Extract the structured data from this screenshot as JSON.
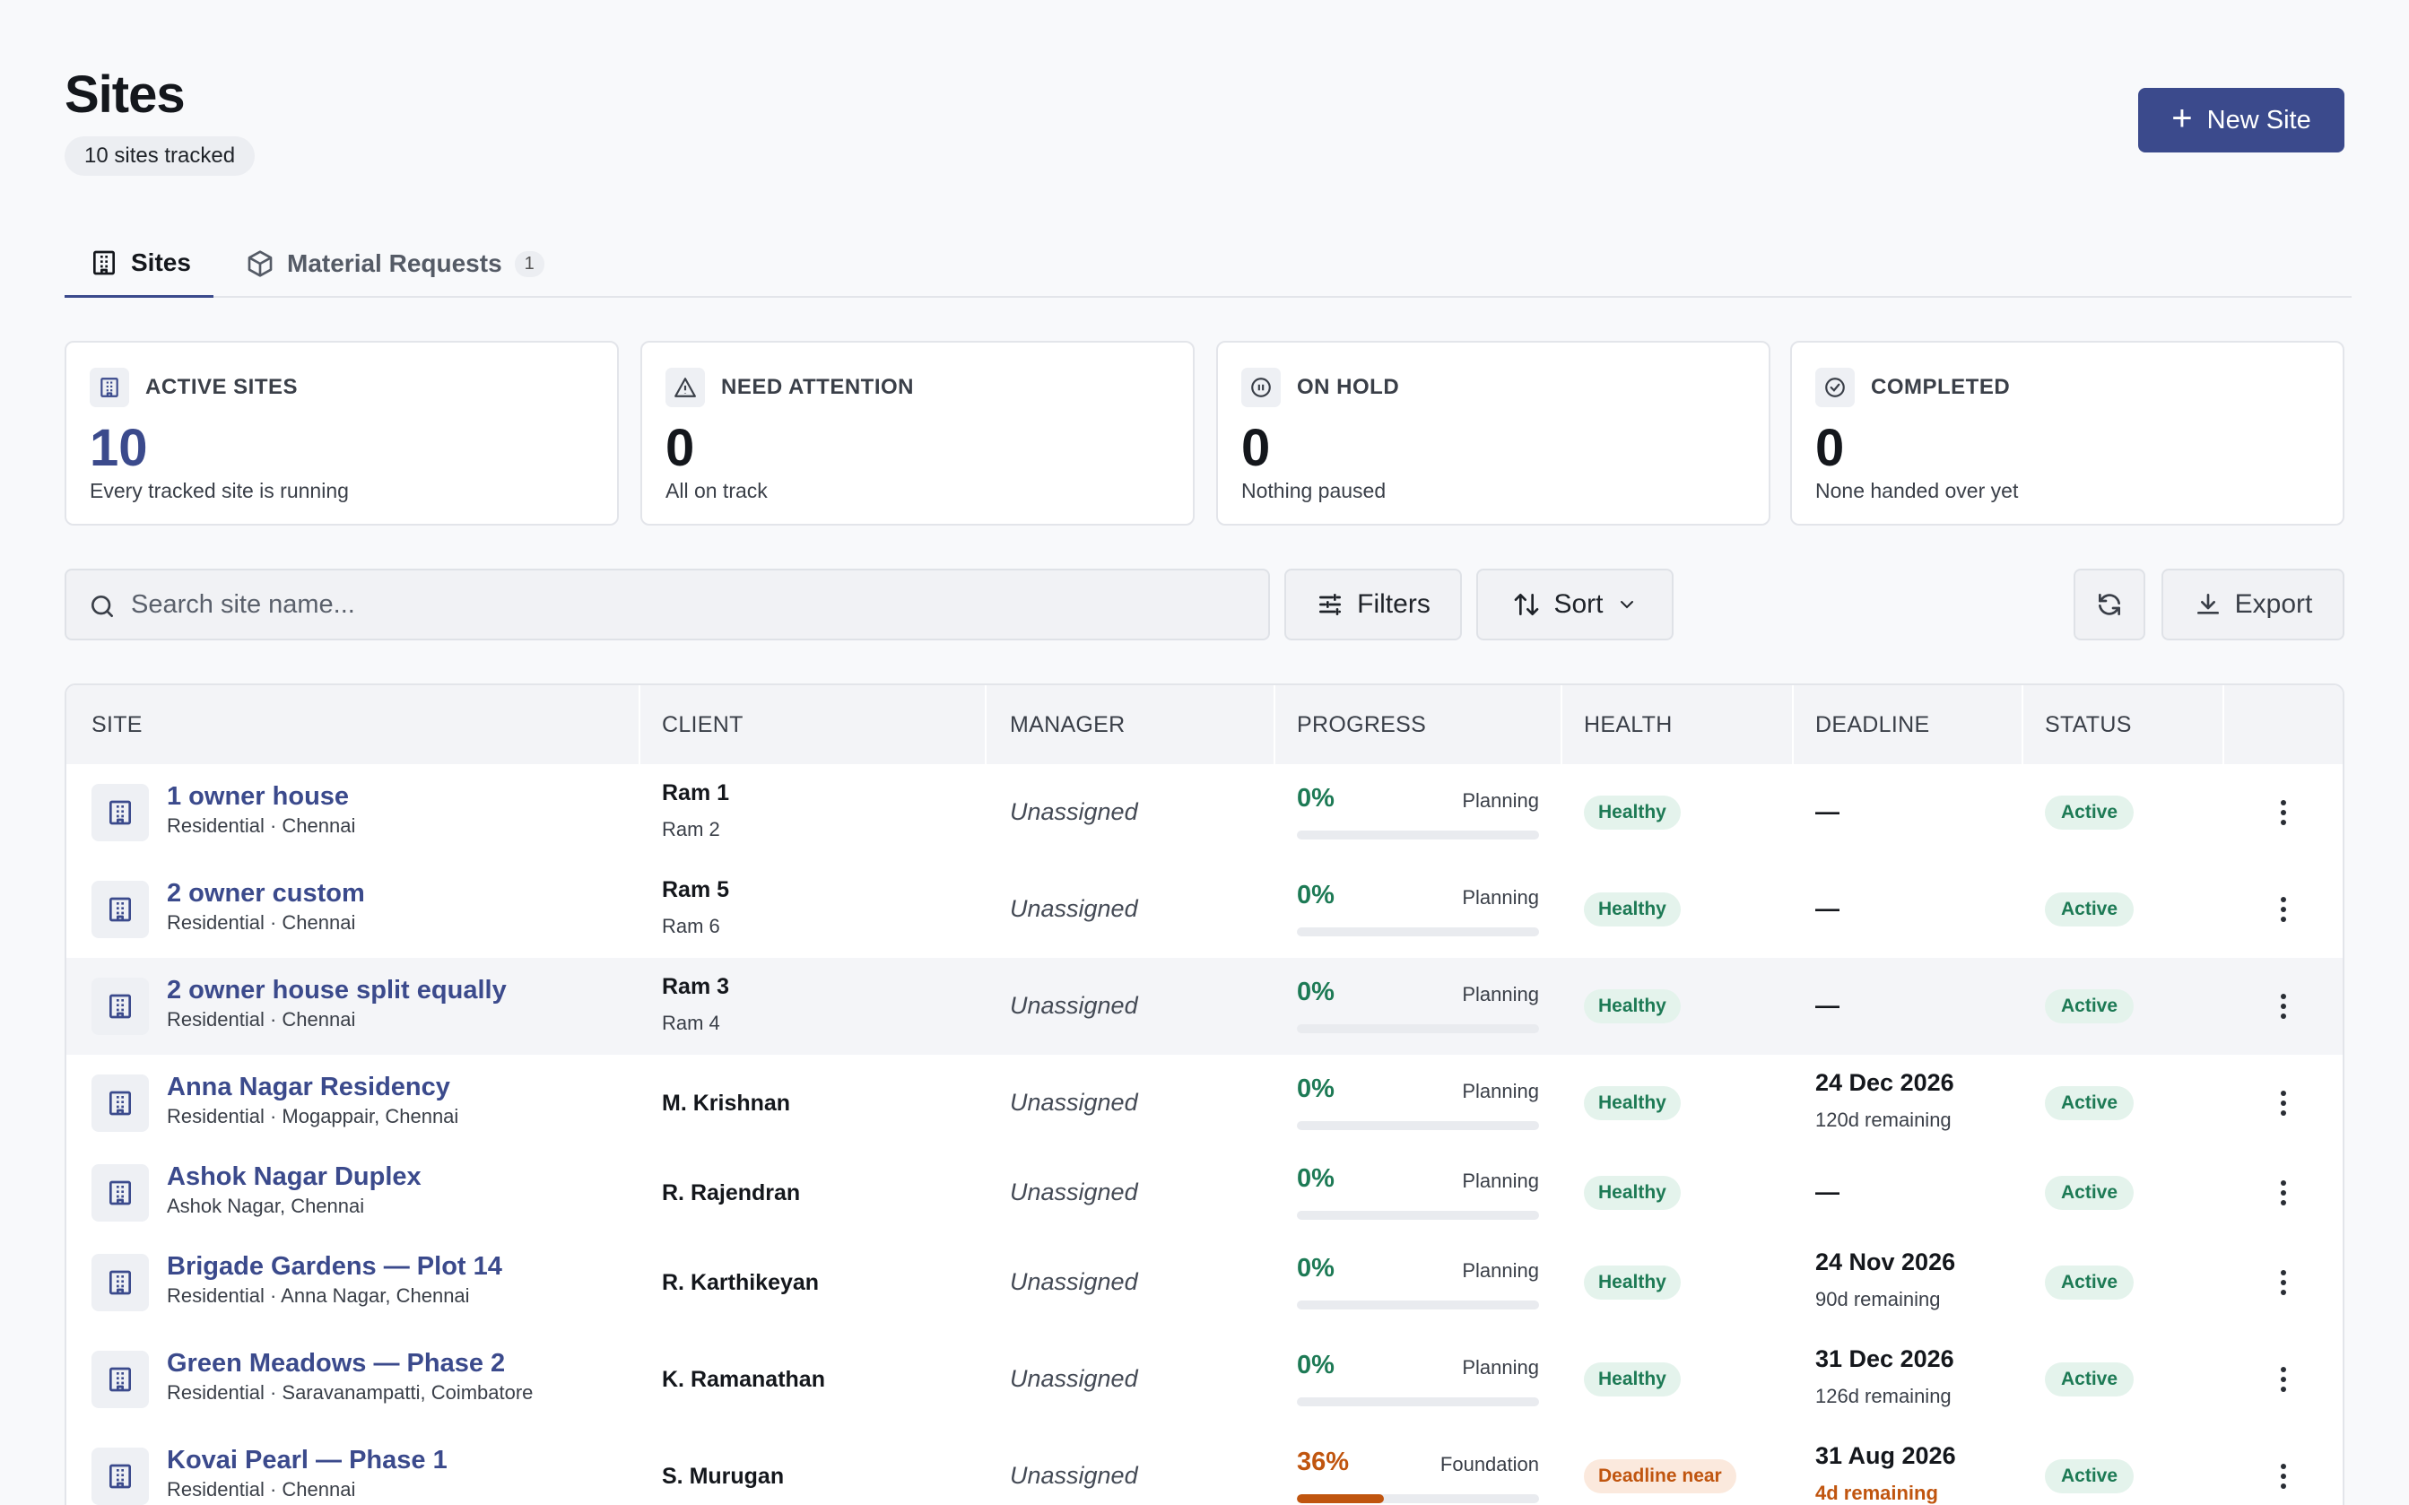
{
  "header": {
    "title": "Sites",
    "count_label": "10 sites tracked",
    "new_site_label": "New Site"
  },
  "tabs": [
    {
      "label": "Sites",
      "active": true,
      "icon": "building-icon"
    },
    {
      "label": "Material Requests",
      "badge": "1",
      "icon": "box-icon"
    }
  ],
  "stats": [
    {
      "label": "ACTIVE SITES",
      "value": "10",
      "desc": "Every tracked site is running",
      "icon": "building-icon",
      "accent": "#3b4a8c"
    },
    {
      "label": "NEED ATTENTION",
      "value": "0",
      "desc": "All on track",
      "icon": "warning-icon"
    },
    {
      "label": "ON HOLD",
      "value": "0",
      "desc": "Nothing paused",
      "icon": "pause-icon"
    },
    {
      "label": "COMPLETED",
      "value": "0",
      "desc": "None handed over yet",
      "icon": "check-circle-icon"
    }
  ],
  "toolbar": {
    "search_placeholder": "Search site name...",
    "filters_label": "Filters",
    "sort_label": "Sort",
    "export_label": "Export"
  },
  "table": {
    "columns": [
      "SITE",
      "CLIENT",
      "MANAGER",
      "PROGRESS",
      "HEALTH",
      "DEADLINE",
      "STATUS"
    ],
    "rows": [
      {
        "name": "1 owner house",
        "sub": "Residential · Chennai",
        "client": "Ram 1",
        "client_sub": "Ram 2",
        "manager": "Unassigned",
        "progress": "0%",
        "progress_value": 0,
        "phase": "Planning",
        "health": "Healthy",
        "deadline": "—",
        "deadline_sub": "",
        "status": "Active"
      },
      {
        "name": "2 owner custom",
        "sub": "Residential · Chennai",
        "client": "Ram 5",
        "client_sub": "Ram 6",
        "manager": "Unassigned",
        "progress": "0%",
        "progress_value": 0,
        "phase": "Planning",
        "health": "Healthy",
        "deadline": "—",
        "deadline_sub": "",
        "status": "Active"
      },
      {
        "name": "2 owner house split equally",
        "sub": "Residential · Chennai",
        "client": "Ram 3",
        "client_sub": "Ram 4",
        "manager": "Unassigned",
        "progress": "0%",
        "progress_value": 0,
        "phase": "Planning",
        "health": "Healthy",
        "deadline": "—",
        "deadline_sub": "",
        "status": "Active"
      },
      {
        "name": "Anna Nagar Residency",
        "sub": "Residential · Mogappair, Chennai",
        "client": "M. Krishnan",
        "client_sub": "",
        "manager": "Unassigned",
        "progress": "0%",
        "progress_value": 0,
        "phase": "Planning",
        "health": "Healthy",
        "deadline": "24 Dec 2026",
        "deadline_sub": "120d remaining",
        "status": "Active"
      },
      {
        "name": "Ashok Nagar Duplex",
        "sub": "Ashok Nagar, Chennai",
        "client": "R. Rajendran",
        "client_sub": "",
        "manager": "Unassigned",
        "progress": "0%",
        "progress_value": 0,
        "phase": "Planning",
        "health": "Healthy",
        "deadline": "—",
        "deadline_sub": "",
        "status": "Active"
      },
      {
        "name": "Brigade Gardens — Plot 14",
        "sub": "Residential · Anna Nagar, Chennai",
        "client": "R. Karthikeyan",
        "client_sub": "",
        "manager": "Unassigned",
        "progress": "0%",
        "progress_value": 0,
        "phase": "Planning",
        "health": "Healthy",
        "deadline": "24 Nov 2026",
        "deadline_sub": "90d remaining",
        "status": "Active"
      },
      {
        "name": "Green Meadows — Phase 2",
        "sub": "Residential · Saravanampatti, Coimbatore",
        "client": "K. Ramanathan",
        "client_sub": "",
        "manager": "Unassigned",
        "progress": "0%",
        "progress_value": 0,
        "phase": "Planning",
        "health": "Healthy",
        "deadline": "31 Dec 2026",
        "deadline_sub": "126d remaining",
        "status": "Active"
      },
      {
        "name": "Kovai Pearl — Phase 1",
        "sub": "Residential · Chennai",
        "client": "S. Murugan",
        "client_sub": "",
        "manager": "Unassigned",
        "progress": "36%",
        "progress_value": 36,
        "phase": "Foundation",
        "health": "Deadline near",
        "deadline": "31 Aug 2026",
        "deadline_sub": "4d remaining",
        "status": "Active",
        "warn": true
      }
    ]
  }
}
